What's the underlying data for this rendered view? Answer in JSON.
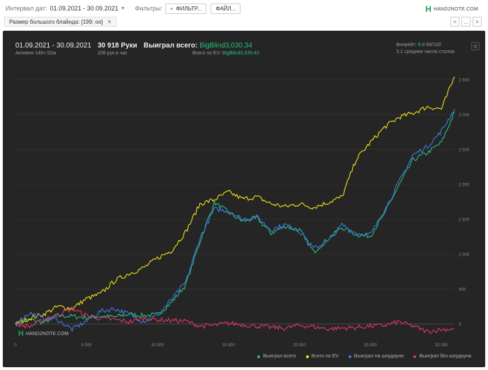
{
  "toolbar": {
    "date_label": "Интервал дат:",
    "date_value": "01.09.2021 - 30.09.2021",
    "filters_label": "Фильтры:",
    "filter_button": "ФИЛЬТР...",
    "file_button": "ФАЙЛ..."
  },
  "logo": {
    "mark": "H",
    "text": "HAND2NOTE.COM"
  },
  "filter_chip": {
    "label": "Размер большого блайнда: [199; oo]"
  },
  "nav": {
    "prev": "<",
    "next": ">",
    "more": "..."
  },
  "stats": {
    "period": "01.09.2021 - 30.09.2021",
    "active": "Активен 148ч 52м",
    "hands": "30 918 Руки",
    "hands_rate": "208 рук в час",
    "won_label": "Выиграл всего: ",
    "won_value": "BigBlind3,030.34",
    "ev_label": "Всего по EV: ",
    "ev_value": "BigBlind3,539.40",
    "winrate_label": "Винрейт: ",
    "winrate_value": "9.8",
    "vpip": " 66/100",
    "tables": "3.1 среднее число столов"
  },
  "watermark": {
    "mark": "H",
    "text": "HAND2NOTE.COM"
  },
  "colors": {
    "won": "#27c07a",
    "ev": "#f2e313",
    "showdown": "#3d7de0",
    "nonshowdown": "#e0356a",
    "bg": "#252526"
  },
  "chart_data": {
    "type": "line",
    "x_ticks": [
      "0",
      "5 000",
      "10 000",
      "15 000",
      "20 000",
      "25 000",
      "30 000"
    ],
    "y_ticks": [
      "0",
      "500",
      "1 000",
      "1 500",
      "2 000",
      "2 500",
      "3 000",
      "3 500"
    ],
    "xlim": [
      0,
      30918
    ],
    "ylim": [
      -200,
      3600
    ],
    "grid": true,
    "legend_position": "bottom-right",
    "series": [
      {
        "name": "Выиграл всего",
        "color": "#27c07a",
        "x": [
          0,
          1000,
          2000,
          3000,
          4000,
          5000,
          6000,
          7000,
          8000,
          9000,
          10000,
          11000,
          12000,
          13000,
          14000,
          15000,
          16000,
          17000,
          18000,
          19000,
          20000,
          21000,
          22000,
          23000,
          24000,
          25000,
          26000,
          27000,
          28000,
          29000,
          30000,
          30918
        ],
        "y": [
          0,
          60,
          20,
          120,
          110,
          90,
          110,
          100,
          140,
          120,
          130,
          310,
          560,
          1180,
          1740,
          1600,
          1470,
          1520,
          1300,
          1400,
          1350,
          1030,
          1220,
          1380,
          1280,
          1260,
          1600,
          1980,
          2350,
          2450,
          2600,
          3030
        ]
      },
      {
        "name": "Всего по EV",
        "color": "#f2e313",
        "x": [
          0,
          1000,
          2000,
          3000,
          4000,
          5000,
          6000,
          7000,
          8000,
          9000,
          10000,
          11000,
          12000,
          13000,
          14000,
          15000,
          16000,
          17000,
          18000,
          19000,
          20000,
          21000,
          22000,
          23000,
          24000,
          25000,
          26000,
          27000,
          28000,
          29000,
          30000,
          30918
        ],
        "y": [
          0,
          80,
          140,
          250,
          220,
          360,
          430,
          620,
          720,
          800,
          940,
          1050,
          1320,
          1720,
          1780,
          1890,
          1790,
          1820,
          1720,
          1680,
          1720,
          1670,
          1740,
          1820,
          2360,
          2600,
          2820,
          2960,
          3020,
          3110,
          3080,
          3540
        ]
      },
      {
        "name": "Выиграл на шоудауне",
        "color": "#3d7de0",
        "x": [
          0,
          1000,
          2000,
          3000,
          4000,
          5000,
          6000,
          7000,
          8000,
          9000,
          10000,
          11000,
          12000,
          13000,
          14000,
          15000,
          16000,
          17000,
          18000,
          19000,
          20000,
          21000,
          22000,
          23000,
          24000,
          25000,
          26000,
          27000,
          28000,
          29000,
          30000,
          30918
        ],
        "y": [
          0,
          160,
          80,
          60,
          -80,
          40,
          180,
          220,
          140,
          40,
          120,
          350,
          600,
          1230,
          1640,
          1620,
          1500,
          1530,
          1350,
          1420,
          1330,
          1080,
          1180,
          1420,
          1300,
          1280,
          1620,
          2030,
          2420,
          2540,
          2760,
          3080
        ]
      },
      {
        "name": "Выиграл без шоудауна",
        "color": "#e0356a",
        "x": [
          0,
          1000,
          2000,
          3000,
          4000,
          5000,
          6000,
          7000,
          8000,
          9000,
          10000,
          11000,
          12000,
          13000,
          14000,
          15000,
          16000,
          17000,
          18000,
          19000,
          20000,
          21000,
          22000,
          23000,
          24000,
          25000,
          26000,
          27000,
          28000,
          29000,
          30000,
          30918
        ],
        "y": [
          0,
          -40,
          60,
          130,
          220,
          120,
          80,
          60,
          30,
          80,
          60,
          50,
          40,
          -30,
          -20,
          10,
          -10,
          -30,
          -50,
          -60,
          -20,
          -40,
          -70,
          -60,
          -50,
          -30,
          -20,
          30,
          -30,
          -110,
          -80,
          -70
        ]
      }
    ]
  }
}
